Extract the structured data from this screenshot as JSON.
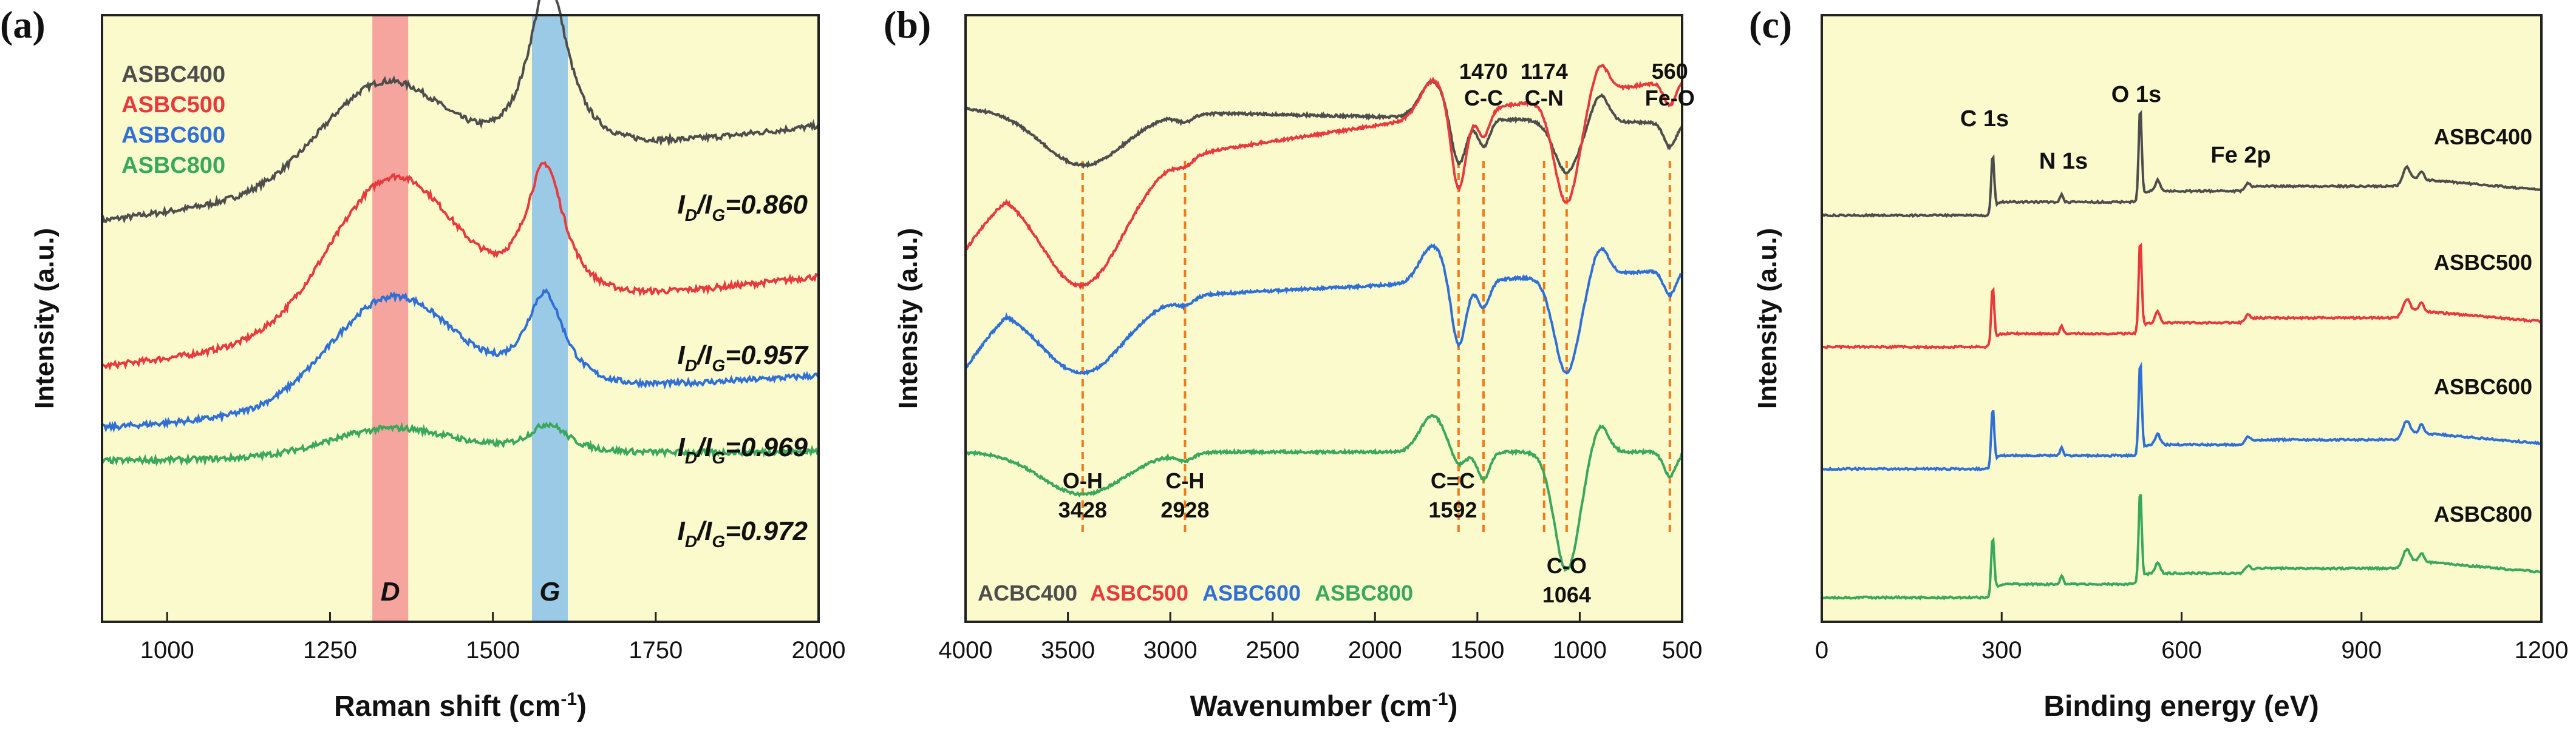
{
  "figure": {
    "colors": {
      "ASBC400": "#4d4d4d",
      "ASBC500": "#e8393c",
      "ASBC600": "#2f6fd6",
      "ASBC800": "#3aa85c",
      "plot_bg": "#fafacd",
      "D_band": "#f59595",
      "G_band": "#8fc4e8",
      "marker": "#f27a1a"
    }
  },
  "chart_data": [
    {
      "panel": "(a)",
      "type": "line",
      "xlabel": "Raman shift (cm",
      "xlabel_sup": "-1",
      "xlabel_close": ")",
      "ylabel": "Intensity (a.u.)",
      "xlim": [
        900,
        2000
      ],
      "xticks": [
        "1000",
        "1250",
        "1500",
        "1750",
        "2000"
      ],
      "legend": [
        "ASBC400",
        "ASBC500",
        "ASBC600",
        "ASBC800"
      ],
      "bands": [
        {
          "label": "D",
          "range": [
            1315,
            1370
          ]
        },
        {
          "label": "G",
          "range": [
            1560,
            1615
          ]
        }
      ],
      "ratios": [
        {
          "value": "=0.860",
          "series": "ASBC400"
        },
        {
          "value": "=0.957",
          "series": "ASBC500"
        },
        {
          "value": "=0.969",
          "series": "ASBC600"
        },
        {
          "value": "=0.972",
          "series": "ASBC800"
        }
      ],
      "ratio_parts": {
        "i": "I",
        "d": "D",
        "g": "G",
        "slash": "/"
      },
      "series": [
        {
          "name": "ASBC400",
          "offset": 3.1,
          "D": {
            "pos": 1330,
            "height": 1.05
          },
          "G": {
            "pos": 1585,
            "height": 1.9
          },
          "background_start": 0,
          "background_end": 1.0
        },
        {
          "name": "ASBC500",
          "offset": 1.55,
          "D": {
            "pos": 1345,
            "height": 1.6
          },
          "G": {
            "pos": 1580,
            "height": 1.5
          },
          "background_start": 0,
          "background_end": 0.95
        },
        {
          "name": "ASBC600",
          "offset": 0.9,
          "D": {
            "pos": 1345,
            "height": 1.15
          },
          "G": {
            "pos": 1580,
            "height": 1.05
          },
          "background_start": 0,
          "background_end": 0.55
        },
        {
          "name": "ASBC800",
          "offset": 0.55,
          "D": {
            "pos": 1345,
            "height": 0.3
          },
          "G": {
            "pos": 1585,
            "height": 0.32
          },
          "background_start": 0,
          "background_end": 0.1
        }
      ]
    },
    {
      "panel": "(b)",
      "type": "line",
      "xlabel": "Wavenumber (cm",
      "xlabel_sup": "-1",
      "xlabel_close": ")",
      "ylabel": "Intensity (a.u.)",
      "xlim": [
        4000,
        500
      ],
      "xticks": [
        "4000",
        "3500",
        "3000",
        "2500",
        "2000",
        "1500",
        "1000",
        "500"
      ],
      "legend": [
        "ACBC400",
        "ASBC500",
        "ASBC600",
        "ASBC800"
      ],
      "markers": [
        3428,
        2928,
        1592,
        1470,
        1174,
        1064,
        560
      ],
      "peak_labels": [
        {
          "lines": [
            "O-H",
            "3428"
          ],
          "at": 3428,
          "where": "bottom"
        },
        {
          "lines": [
            "C-H",
            "2928"
          ],
          "at": 2928,
          "where": "bottom"
        },
        {
          "lines": [
            "C=C",
            "1592"
          ],
          "at": 1620,
          "where": "bottom"
        },
        {
          "lines": [
            "C-O",
            "1064"
          ],
          "at": 1064,
          "where": "bottom"
        },
        {
          "lines": [
            "1470",
            "C-C"
          ],
          "at": 1470,
          "where": "top"
        },
        {
          "lines": [
            "1174",
            "C-N"
          ],
          "at": 1174,
          "where": "top"
        },
        {
          "lines": [
            "560",
            "Fe-O"
          ],
          "at": 560,
          "where": "top"
        }
      ]
    },
    {
      "panel": "(c)",
      "type": "line",
      "xlabel": "Binding energy (eV)",
      "ylabel": "Intensity (a.u.)",
      "xlim": [
        0,
        1200
      ],
      "xticks": [
        "0",
        "300",
        "600",
        "900",
        "1200"
      ],
      "peak_labels": [
        "C 1s",
        "N 1s",
        "O 1s",
        "Fe 2p"
      ],
      "series_labels": [
        "ASBC400",
        "ASBC500",
        "ASBC600",
        "ASBC800"
      ]
    }
  ]
}
